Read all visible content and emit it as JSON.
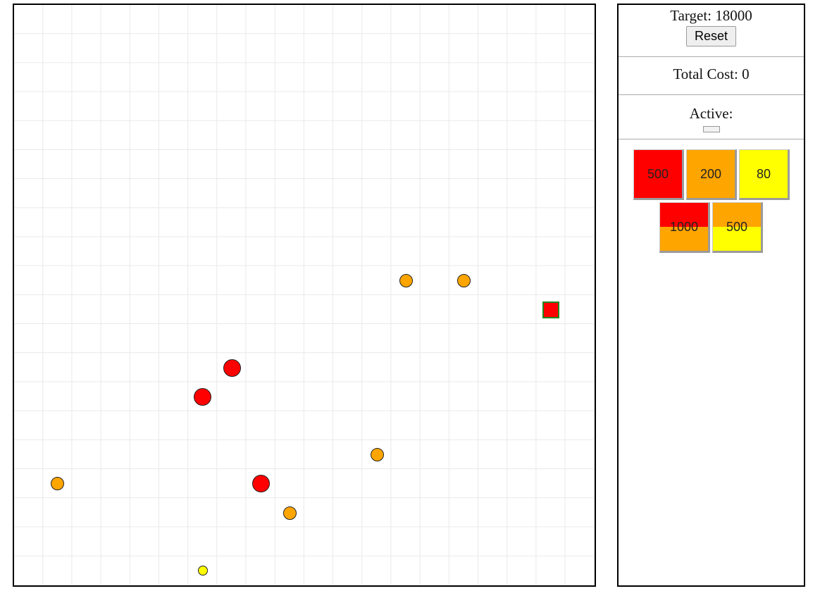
{
  "board": {
    "grid_cells": 20,
    "pieces": [
      {
        "shape": "circle",
        "color": "#ffa500",
        "size": "medium",
        "col": 13,
        "row": 9
      },
      {
        "shape": "circle",
        "color": "#ffa500",
        "size": "medium",
        "col": 15,
        "row": 9
      },
      {
        "shape": "square",
        "color": "#ff0000",
        "border": "#1f8a1f",
        "size": "small",
        "col": 18,
        "row": 10
      },
      {
        "shape": "circle",
        "color": "#ff0000",
        "size": "large",
        "col": 7,
        "row": 12
      },
      {
        "shape": "circle",
        "color": "#ff0000",
        "size": "large",
        "col": 6,
        "row": 13
      },
      {
        "shape": "circle",
        "color": "#ffa500",
        "size": "medium",
        "col": 12,
        "row": 15
      },
      {
        "shape": "circle",
        "color": "#ffa500",
        "size": "medium",
        "col": 1,
        "row": 16
      },
      {
        "shape": "circle",
        "color": "#ff0000",
        "size": "large",
        "col": 8,
        "row": 16
      },
      {
        "shape": "circle",
        "color": "#ffa500",
        "size": "medium",
        "col": 9,
        "row": 17
      },
      {
        "shape": "circle",
        "color": "#ffff00",
        "size": "small",
        "col": 6,
        "row": 19
      }
    ]
  },
  "panel": {
    "target_label": "Target: 18000",
    "reset_label": "Reset",
    "total_cost_label": "Total Cost: 0",
    "active_label": "Active:",
    "tiles": [
      {
        "name": "tile-red-500",
        "label": "500",
        "top": "#ff0000",
        "bottom": "#ff0000"
      },
      {
        "name": "tile-orange-200",
        "label": "200",
        "top": "#ffa500",
        "bottom": "#ffa500"
      },
      {
        "name": "tile-yellow-80",
        "label": "80",
        "top": "#ffff00",
        "bottom": "#ffff00"
      },
      {
        "name": "tile-red-orange-1000",
        "label": "1000",
        "top": "#ff0000",
        "bottom": "#ffa500"
      },
      {
        "name": "tile-orange-yellow-500",
        "label": "500",
        "top": "#ffa500",
        "bottom": "#ffff00"
      }
    ]
  }
}
